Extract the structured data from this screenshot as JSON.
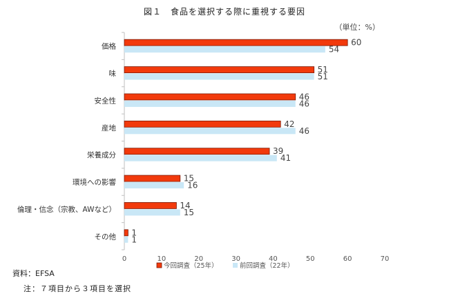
{
  "title": "図１　食品を選択する際に重視する要因",
  "unit": "（単位：%）",
  "source": "資料：EFSA",
  "note": "注：７項目から３項目を選択",
  "chart_data": {
    "type": "bar",
    "orientation": "horizontal",
    "categories": [
      "価格",
      "味",
      "安全性",
      "産地",
      "栄養成分",
      "環境への影響",
      "倫理・信念（宗教、AWなど）",
      "その他"
    ],
    "series": [
      {
        "name": "今回調査（25年）",
        "values": [
          60,
          51,
          46,
          42,
          39,
          15,
          14,
          1
        ],
        "color": "#f23a0c",
        "stroke": "#7a1a08"
      },
      {
        "name": "前回調査（22年）",
        "values": [
          54,
          51,
          46,
          46,
          41,
          16,
          15,
          1
        ],
        "color": "#c9e7f6",
        "stroke": "#c9e7f6"
      }
    ],
    "xlim": [
      0,
      70
    ],
    "xticks": [
      0,
      10,
      20,
      30,
      40,
      50,
      60,
      70
    ],
    "grid": false,
    "legend_position": "bottom"
  }
}
